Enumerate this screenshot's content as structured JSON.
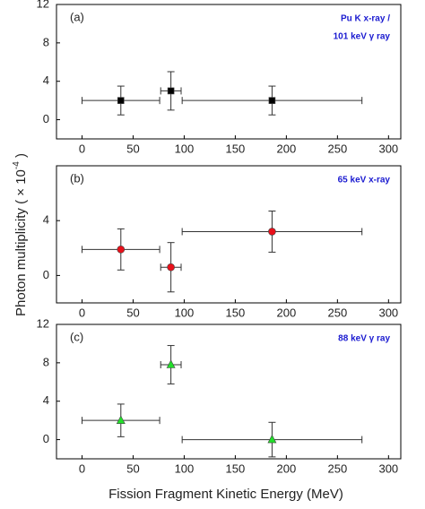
{
  "xlabel": "Fission Fragment Kinetic Energy (MeV)",
  "ylabel": [
    "Photon multiplicity ( × 10",
    "-4",
    " )"
  ],
  "chart_data": [
    {
      "type": "scatter",
      "label": "(a)",
      "annotation": [
        "Pu K x-ray /",
        "101 keV γ ray"
      ],
      "x": [
        38,
        87,
        186
      ],
      "xerr": [
        38,
        10,
        88
      ],
      "series": [
        {
          "color": "#000000",
          "marker": "square",
          "values": [
            2,
            3,
            2
          ],
          "yerr": [
            1.5,
            2,
            1.5
          ]
        }
      ],
      "xlim": [
        -25,
        312
      ],
      "xticks": [
        0,
        50,
        100,
        150,
        200,
        250,
        300
      ],
      "ylim": [
        -2,
        12
      ],
      "yticks": [
        0,
        4,
        8,
        12
      ]
    },
    {
      "type": "scatter",
      "label": "(b)",
      "annotation": [
        "65 keV x-ray"
      ],
      "x": [
        38,
        87,
        186
      ],
      "xerr": [
        38,
        10,
        88
      ],
      "series": [
        {
          "color": "#e8101a",
          "marker": "circle",
          "values": [
            1.9,
            0.6,
            3.2
          ],
          "yerr": [
            1.5,
            1.8,
            1.5
          ]
        }
      ],
      "xlim": [
        -25,
        312
      ],
      "xticks": [
        0,
        50,
        100,
        150,
        200,
        250,
        300
      ],
      "ylim": [
        -2,
        8
      ],
      "yticks": [
        0,
        4
      ]
    },
    {
      "type": "scatter",
      "label": "(c)",
      "annotation": [
        "88 keV γ ray"
      ],
      "x": [
        38,
        87,
        186
      ],
      "xerr": [
        38,
        10,
        88
      ],
      "series": [
        {
          "color": "#22e02a",
          "marker": "triangle",
          "values": [
            2.0,
            7.8,
            0.0
          ],
          "yerr": [
            1.7,
            2.0,
            1.8
          ]
        }
      ],
      "xlim": [
        -25,
        312
      ],
      "xticks": [
        0,
        50,
        100,
        150,
        200,
        250,
        300
      ],
      "ylim": [
        -2,
        12
      ],
      "yticks": [
        0,
        4,
        8,
        12
      ]
    }
  ]
}
